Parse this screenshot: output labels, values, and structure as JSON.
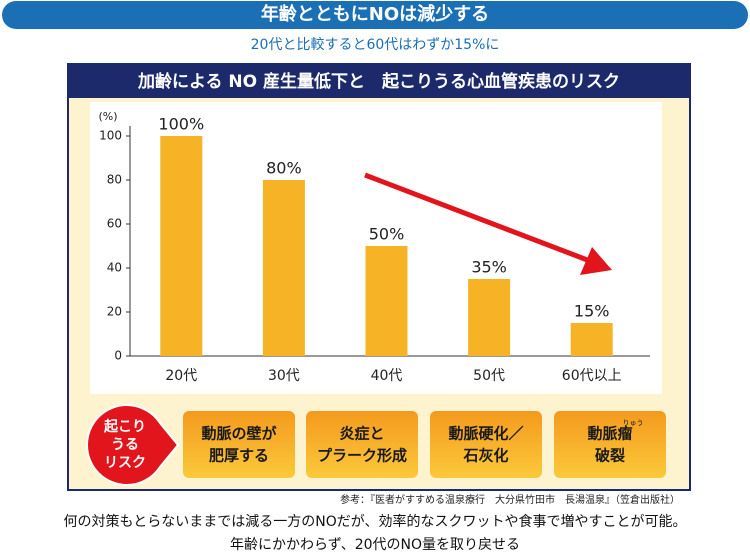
{
  "header": {
    "title": "年齢とともにNOは減少する",
    "subtitle": "20代と比較すると60代はわずか15%に"
  },
  "chart_data": {
    "type": "bar",
    "title": "加齢による NO 産生量低下と　起こりうる心血管疾患のリスク",
    "y_unit": "(%)",
    "categories": [
      "20代",
      "30代",
      "40代",
      "50代",
      "60代以上"
    ],
    "values": [
      100,
      80,
      50,
      35,
      15
    ],
    "value_labels": [
      "100%",
      "80%",
      "50%",
      "35%",
      "15%"
    ],
    "color": "#f6b326",
    "ylim": [
      0,
      100
    ],
    "yticks": [
      0,
      20,
      40,
      60,
      80,
      100
    ],
    "grid": false
  },
  "risks": {
    "label": [
      "起こり",
      "うる",
      "リスク"
    ],
    "items": [
      {
        "lines": [
          "動脈の壁が",
          "肥厚する"
        ]
      },
      {
        "lines": [
          "炎症と",
          "プラーク形成"
        ]
      },
      {
        "lines": [
          "動脈硬化／",
          "石灰化"
        ]
      },
      {
        "lines": [
          "動脈瘤",
          "破裂"
        ],
        "ruby": "りゅう"
      }
    ]
  },
  "reference": "参考：『医者がすすめる温泉療行　大分県竹田市　長湯温泉』（笠倉出版社）",
  "footer": [
    "何の対策もとらないままでは減る一方のNOだが、効率的なスクワットや食事で増やすことが可能。",
    "年齢にかかわらず、20代のNO量を取り戻せる"
  ]
}
